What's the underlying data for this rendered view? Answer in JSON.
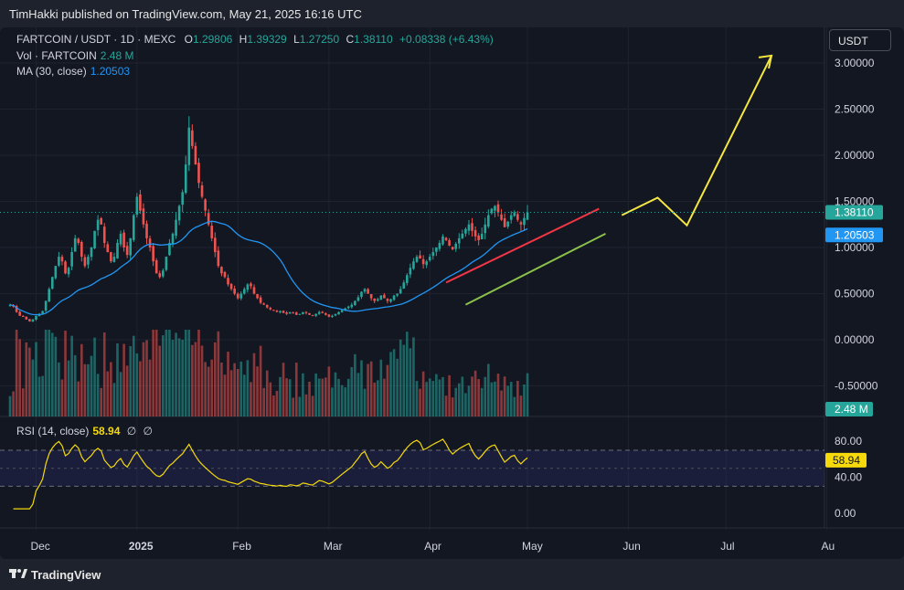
{
  "header": {
    "published": "TimHakki published on TradingView.com, May 21, 2025 16:16 UTC"
  },
  "legend": {
    "symbol": "FARTCOIN / USDT · 1D · MEXC",
    "o_label": "O",
    "o": "1.29806",
    "h_label": "H",
    "h": "1.39329",
    "l_label": "L",
    "l": "1.27250",
    "c_label": "C",
    "c": "1.38110",
    "change": "+0.08338 (+6.43%)",
    "vol_label": "Vol · FARTCOIN",
    "vol": "2.48 M",
    "ma_label": "MA (30, close)",
    "ma": "1.20503",
    "rsi_label": "RSI (14, close)",
    "rsi": "58.94",
    "rsi_extra1": "∅",
    "rsi_extra2": "∅"
  },
  "currency_button": "USDT",
  "footer": {
    "brand": "TradingView"
  },
  "colors": {
    "up": "#26a69a",
    "down": "#ef5350",
    "ma": "#2196f3",
    "rsi": "#f5d90a",
    "projection": "#f5e642",
    "upper_trend": "#f23645",
    "lower_trend": "#8bc34a"
  },
  "chart_data": {
    "type": "candlestick",
    "price_axis": {
      "ticks": [
        3.0,
        2.5,
        2.0,
        1.5,
        1.0,
        0.5,
        0.0,
        -0.5
      ],
      "tick_labels": [
        "3.00000",
        "2.50000",
        "2.00000",
        "1.50000",
        "1.00000",
        "0.50000",
        "0.00000",
        "-0.50000"
      ]
    },
    "last_price": {
      "value": 1.3811,
      "label": "1.38110"
    },
    "ma_value": {
      "value": 1.20503,
      "label": "1.20503"
    },
    "volume_tag": "2.48 M",
    "time_axis": {
      "labels": [
        "Dec",
        "2025",
        "Feb",
        "Mar",
        "Apr",
        "May",
        "Jun",
        "Jul",
        "Au"
      ],
      "label_day_index": [
        8,
        39,
        70,
        98,
        129,
        159,
        190,
        220,
        251
      ]
    },
    "day_span": [
      0,
      252
    ],
    "candles_last_day": 187,
    "closes": [
      0.38,
      0.36,
      0.3,
      0.26,
      0.25,
      0.22,
      0.2,
      0.22,
      0.26,
      0.28,
      0.31,
      0.42,
      0.55,
      0.68,
      0.8,
      0.9,
      0.85,
      0.72,
      0.78,
      0.95,
      1.1,
      1.05,
      0.9,
      0.8,
      0.9,
      1.0,
      1.18,
      1.3,
      1.25,
      1.05,
      0.95,
      0.85,
      0.9,
      1.05,
      1.15,
      1.0,
      0.92,
      1.1,
      1.35,
      1.55,
      1.4,
      1.25,
      1.1,
      1.0,
      0.85,
      0.72,
      0.68,
      0.75,
      0.9,
      1.05,
      1.15,
      1.3,
      1.45,
      1.6,
      1.9,
      2.3,
      2.1,
      1.9,
      1.7,
      1.55,
      1.4,
      1.25,
      1.1,
      0.95,
      0.8,
      0.72,
      0.68,
      0.6,
      0.55,
      0.5,
      0.45,
      0.5,
      0.55,
      0.6,
      0.58,
      0.5,
      0.45,
      0.4,
      0.38,
      0.35,
      0.33,
      0.32,
      0.3,
      0.31,
      0.29,
      0.28,
      0.3,
      0.29,
      0.27,
      0.28,
      0.3,
      0.29,
      0.27,
      0.26,
      0.28,
      0.3,
      0.29,
      0.27,
      0.25,
      0.26,
      0.28,
      0.3,
      0.32,
      0.34,
      0.36,
      0.38,
      0.42,
      0.46,
      0.52,
      0.55,
      0.5,
      0.45,
      0.42,
      0.44,
      0.48,
      0.45,
      0.42,
      0.44,
      0.48,
      0.5,
      0.55,
      0.62,
      0.7,
      0.78,
      0.85,
      0.9,
      0.88,
      0.82,
      0.85,
      0.9,
      0.95,
      1.0,
      1.05,
      1.12,
      1.08,
      1.02,
      0.98,
      1.04,
      1.1,
      1.15,
      1.2,
      1.25,
      1.18,
      1.12,
      1.08,
      1.15,
      1.25,
      1.35,
      1.42,
      1.45,
      1.38,
      1.3,
      1.22,
      1.28,
      1.35,
      1.38,
      1.3,
      1.25,
      1.32,
      1.38
    ],
    "ma_period": 30,
    "rsi": {
      "axis_ticks": [
        80,
        40,
        0
      ],
      "tick_labels": [
        "80.00",
        "40.00",
        "0.00"
      ],
      "band": [
        70,
        30
      ],
      "mid": 50,
      "value": 58.94,
      "value_label": "58.94"
    },
    "upper_trendline": {
      "from": {
        "day": 134,
        "price": 0.62
      },
      "to": {
        "day": 181,
        "price": 1.42
      }
    },
    "lower_trendline": {
      "from": {
        "day": 140,
        "price": 0.38
      },
      "to": {
        "day": 183,
        "price": 1.15
      }
    },
    "projection": [
      {
        "day": 188,
        "price": 1.35
      },
      {
        "day": 199,
        "price": 1.54
      },
      {
        "day": 208,
        "price": 1.24
      },
      {
        "day": 234,
        "price": 3.08
      }
    ]
  }
}
